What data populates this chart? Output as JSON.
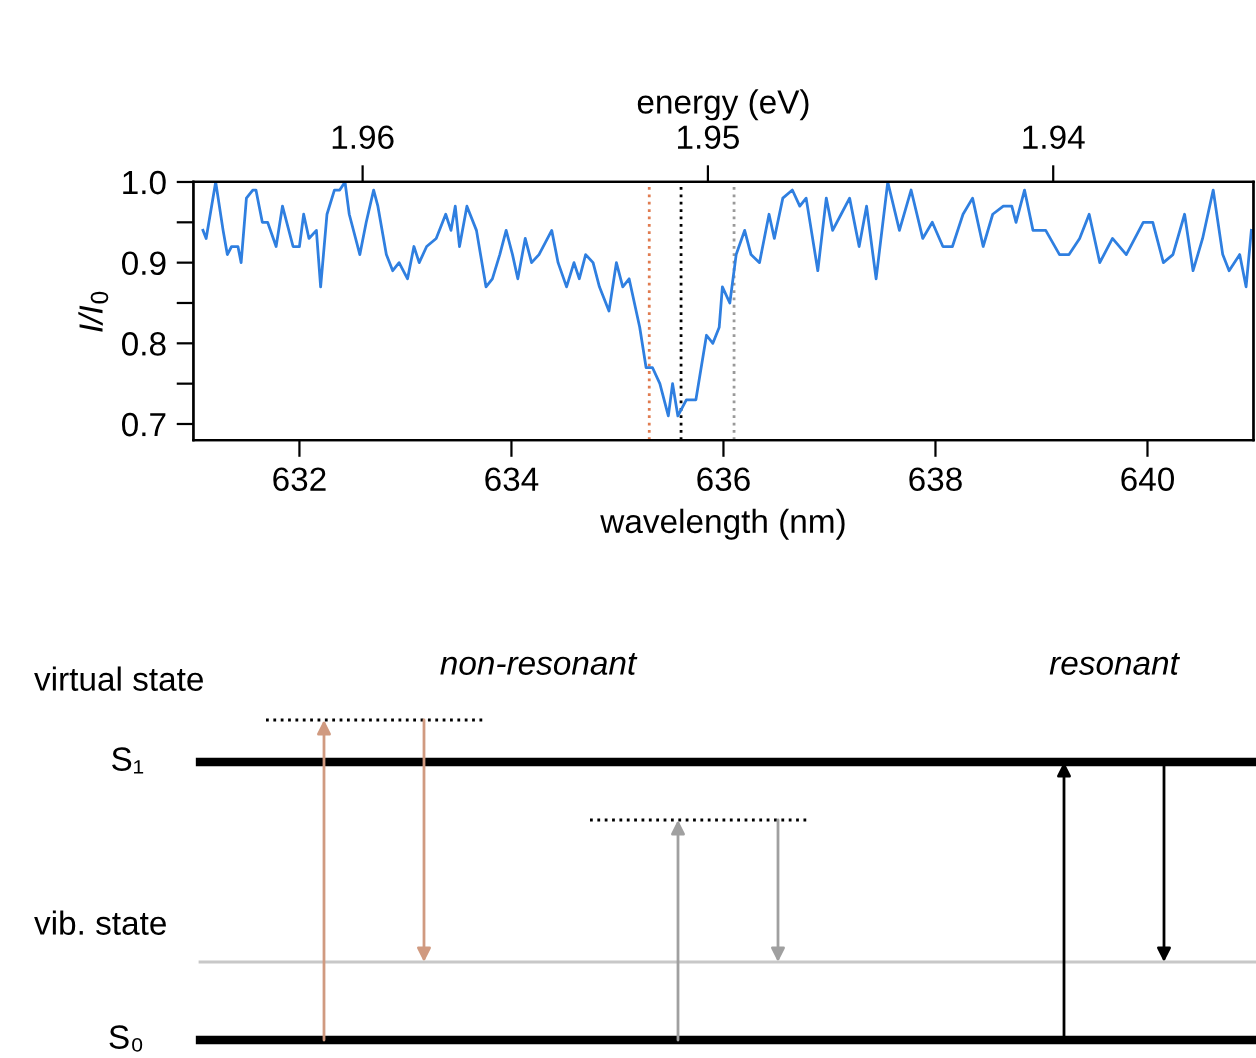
{
  "chart_data": {
    "type": "line",
    "xlabel": "wavelength (nm)",
    "ylabel": "I/I$_{0}$",
    "x2label": "energy (eV)",
    "xlim": [
      631,
      641
    ],
    "xticks": [
      632,
      634,
      636,
      638,
      640
    ],
    "ylim": [
      0.68,
      1.0
    ],
    "yticks": [
      0.7,
      {
        "value": 0.75,
        "label": null
      },
      0.8,
      {
        "value": 0.85,
        "label": null
      },
      0.9,
      {
        "value": 0.95,
        "label": null
      },
      {
        "value": 1.0,
        "label": "1.0"
      }
    ],
    "x2lim": [
      1.9649,
      1.9342
    ],
    "x2ticks": [
      1.96,
      1.95,
      1.94
    ],
    "grid": false,
    "legend": false,
    "marker": "none",
    "line_style": "solid",
    "ref_lines": [
      {
        "axis": "x",
        "value": 635.3,
        "label": null,
        "color": "#e07b4f",
        "line_style": "dotted"
      },
      {
        "axis": "x",
        "value": 635.6,
        "label": null,
        "color": "#000000",
        "line_style": "dotted"
      },
      {
        "axis": "x",
        "value": 636.1,
        "label": null,
        "color": "#999999",
        "line_style": "dotted"
      }
    ],
    "annotations": [
      "virtual state",
      "non-resonant",
      "resonant",
      "S₁",
      "vib. state",
      "S₀"
    ],
    "series": [
      {
        "color": "#2f7fe0",
        "x": [
          631.09,
          631.12,
          631.21,
          631.28,
          631.32,
          631.36,
          631.42,
          631.45,
          631.5,
          631.56,
          631.59,
          631.62,
          631.65,
          631.7,
          631.78,
          631.84,
          631.94,
          632.0,
          632.04,
          632.09,
          632.16,
          632.2,
          632.26,
          632.33,
          632.38,
          632.43,
          632.47,
          632.57,
          632.63,
          632.7,
          632.74,
          632.82,
          632.88,
          632.94,
          633.02,
          633.08,
          633.13,
          633.2,
          633.29,
          633.38,
          633.43,
          633.47,
          633.51,
          633.58,
          633.67,
          633.76,
          633.82,
          633.89,
          633.95,
          634.01,
          634.06,
          634.13,
          634.19,
          634.26,
          634.38,
          634.44,
          634.52,
          634.59,
          634.64,
          634.7,
          634.77,
          634.83,
          634.92,
          634.99,
          635.05,
          635.11,
          635.16,
          635.21,
          635.27,
          635.33,
          635.4,
          635.48,
          635.52,
          635.57,
          635.65,
          635.74,
          635.84,
          635.9,
          635.96,
          635.99,
          636.06,
          636.12,
          636.2,
          636.26,
          636.34,
          636.43,
          636.48,
          636.56,
          636.65,
          636.72,
          636.78,
          636.89,
          636.97,
          637.03,
          637.11,
          637.19,
          637.28,
          637.35,
          637.44,
          637.55,
          637.66,
          637.77,
          637.88,
          637.97,
          638.07,
          638.16,
          638.26,
          638.35,
          638.45,
          638.54,
          638.64,
          638.72,
          638.76,
          638.84,
          638.92,
          639.04,
          639.17,
          639.26,
          639.36,
          639.45,
          639.55,
          639.67,
          639.8,
          639.96,
          640.05,
          640.15,
          640.24,
          640.35,
          640.43,
          640.52,
          640.62,
          640.71,
          640.77,
          640.87,
          640.93,
          640.98
        ],
        "values": [
          0.94,
          0.93,
          1.0,
          0.94,
          0.91,
          0.92,
          0.92,
          0.9,
          0.98,
          0.99,
          0.99,
          0.97,
          0.95,
          0.95,
          0.92,
          0.97,
          0.92,
          0.92,
          0.96,
          0.93,
          0.94,
          0.87,
          0.96,
          0.99,
          0.99,
          1.0,
          0.96,
          0.91,
          0.95,
          0.99,
          0.97,
          0.91,
          0.89,
          0.9,
          0.88,
          0.92,
          0.9,
          0.92,
          0.93,
          0.96,
          0.94,
          0.97,
          0.92,
          0.97,
          0.94,
          0.87,
          0.88,
          0.91,
          0.94,
          0.91,
          0.88,
          0.93,
          0.9,
          0.91,
          0.94,
          0.9,
          0.87,
          0.9,
          0.88,
          0.91,
          0.9,
          0.87,
          0.84,
          0.9,
          0.87,
          0.88,
          0.85,
          0.82,
          0.77,
          0.77,
          0.75,
          0.71,
          0.75,
          0.71,
          0.73,
          0.73,
          0.81,
          0.8,
          0.82,
          0.87,
          0.85,
          0.91,
          0.94,
          0.91,
          0.9,
          0.96,
          0.93,
          0.98,
          0.99,
          0.97,
          0.98,
          0.89,
          0.98,
          0.94,
          0.96,
          0.98,
          0.92,
          0.97,
          0.88,
          1.0,
          0.94,
          0.99,
          0.93,
          0.95,
          0.92,
          0.92,
          0.96,
          0.98,
          0.92,
          0.96,
          0.97,
          0.97,
          0.95,
          0.99,
          0.94,
          0.94,
          0.91,
          0.91,
          0.93,
          0.96,
          0.9,
          0.93,
          0.91,
          0.95,
          0.95,
          0.9,
          0.91,
          0.96,
          0.89,
          0.93,
          0.99,
          0.91,
          0.89,
          0.91,
          0.87,
          0.94
        ]
      }
    ]
  }
}
